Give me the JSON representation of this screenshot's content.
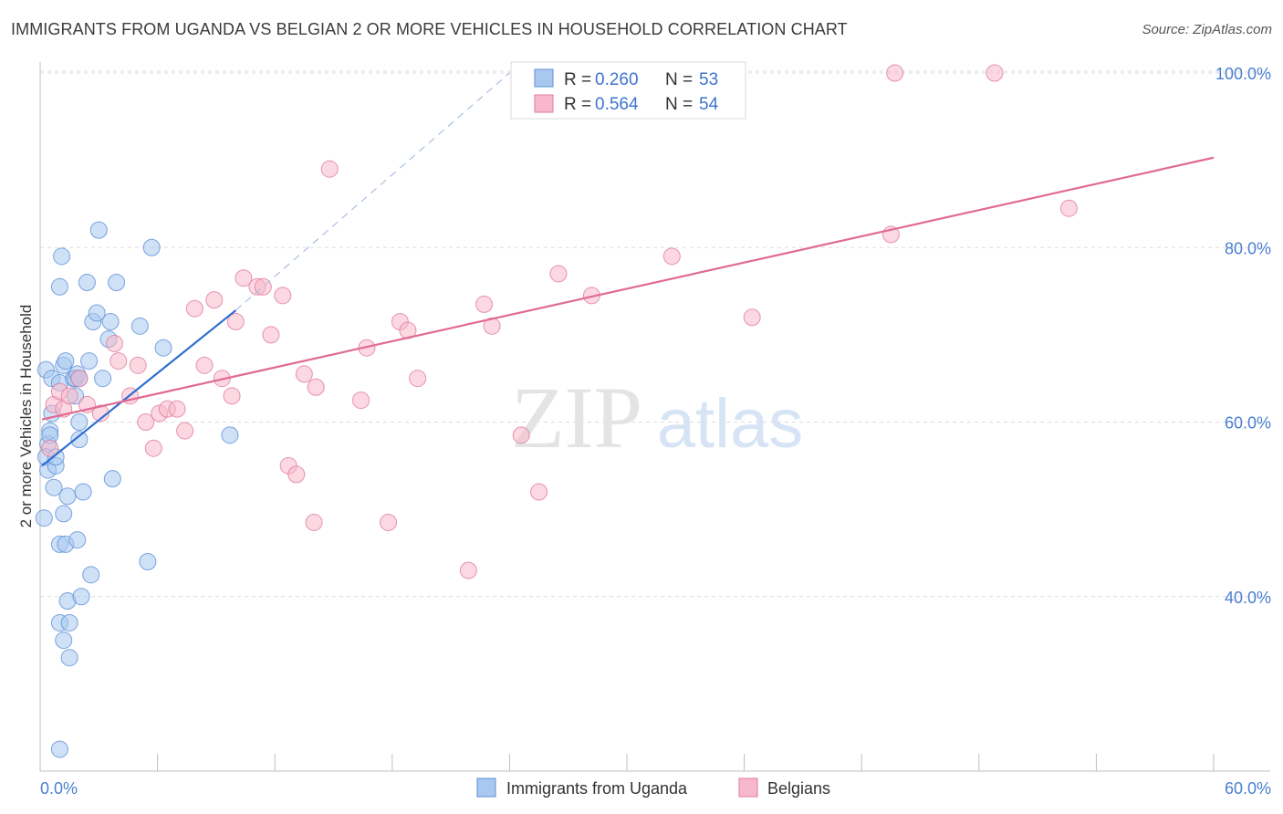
{
  "title": "IMMIGRANTS FROM UGANDA VS BELGIAN 2 OR MORE VEHICLES IN HOUSEHOLD CORRELATION CHART",
  "source": "Source: ZipAtlas.com",
  "watermark": {
    "zip": "ZIP",
    "atlas": "atlas"
  },
  "legend_box": {
    "rows": [
      {
        "r_label": "R =",
        "r_value": "0.260",
        "n_label": "N =",
        "n_value": "53"
      },
      {
        "r_label": "R =",
        "r_value": "0.564",
        "n_label": "N =",
        "n_value": "54"
      }
    ]
  },
  "colors": {
    "uganda_fill": "#a8c8f0",
    "uganda_stroke": "#5b8fd6",
    "uganda_line": "#2e6fcf",
    "belgian_fill": "#f7b8cb",
    "belgian_stroke": "#e07a9c",
    "belgian_line": "#e06b93",
    "tick_label": "#4a7fd0",
    "grid": "#dddddd"
  },
  "chart_data": {
    "type": "scatter",
    "title": "IMMIGRANTS FROM UGANDA VS BELGIAN 2 OR MORE VEHICLES IN HOUSEHOLD CORRELATION CHART",
    "xlabel": "",
    "ylabel": "2 or more Vehicles in Household",
    "xlim": [
      0,
      60
    ],
    "ylim": [
      20,
      100
    ],
    "x_tick_labels": [
      "0.0%",
      "60.0%"
    ],
    "y_ticks": [
      40,
      60,
      80,
      100
    ],
    "y_tick_labels": [
      "40.0%",
      "60.0%",
      "80.0%",
      "100.0%"
    ],
    "grid": true,
    "legend_position": "bottom",
    "series": [
      {
        "name": "Immigrants from Uganda",
        "points": [
          [
            0.3,
            66.0
          ],
          [
            0.4,
            57.5
          ],
          [
            0.3,
            56.0
          ],
          [
            0.5,
            59.0
          ],
          [
            0.6,
            61.0
          ],
          [
            0.5,
            58.5
          ],
          [
            0.4,
            54.5
          ],
          [
            0.2,
            49.0
          ],
          [
            0.8,
            55.0
          ],
          [
            0.7,
            52.5
          ],
          [
            0.8,
            56.0
          ],
          [
            0.6,
            65.0
          ],
          [
            1.0,
            75.5
          ],
          [
            1.1,
            79.0
          ],
          [
            1.2,
            66.5
          ],
          [
            1.3,
            67.0
          ],
          [
            1.0,
            64.5
          ],
          [
            1.2,
            49.5
          ],
          [
            1.4,
            51.5
          ],
          [
            1.0,
            46.0
          ],
          [
            1.3,
            46.0
          ],
          [
            1.4,
            39.5
          ],
          [
            1.0,
            37.0
          ],
          [
            1.2,
            35.0
          ],
          [
            1.5,
            33.0
          ],
          [
            1.5,
            37.0
          ],
          [
            1.7,
            65.0
          ],
          [
            1.8,
            63.0
          ],
          [
            1.8,
            65.0
          ],
          [
            1.9,
            65.5
          ],
          [
            2.0,
            65.0
          ],
          [
            1.9,
            46.5
          ],
          [
            2.2,
            52.0
          ],
          [
            2.1,
            40.0
          ],
          [
            2.0,
            60.0
          ],
          [
            2.0,
            58.0
          ],
          [
            2.4,
            76.0
          ],
          [
            2.5,
            67.0
          ],
          [
            2.6,
            42.5
          ],
          [
            2.7,
            71.5
          ],
          [
            2.9,
            72.5
          ],
          [
            3.0,
            82.0
          ],
          [
            3.2,
            65.0
          ],
          [
            3.5,
            69.5
          ],
          [
            3.6,
            71.5
          ],
          [
            3.7,
            53.5
          ],
          [
            3.9,
            76.0
          ],
          [
            5.1,
            71.0
          ],
          [
            5.5,
            44.0
          ],
          [
            5.7,
            80.0
          ],
          [
            6.3,
            68.5
          ],
          [
            9.7,
            58.5
          ],
          [
            1.0,
            22.5
          ]
        ]
      },
      {
        "name": "Belgians",
        "points": [
          [
            0.5,
            57.0
          ],
          [
            0.7,
            62.0
          ],
          [
            1.0,
            63.5
          ],
          [
            1.2,
            61.5
          ],
          [
            1.5,
            63.0
          ],
          [
            2.0,
            65.0
          ],
          [
            2.4,
            62.0
          ],
          [
            3.1,
            61.0
          ],
          [
            3.8,
            69.0
          ],
          [
            4.0,
            67.0
          ],
          [
            4.6,
            63.0
          ],
          [
            5.0,
            66.5
          ],
          [
            5.4,
            60.0
          ],
          [
            5.8,
            57.0
          ],
          [
            6.1,
            61.0
          ],
          [
            6.5,
            61.5
          ],
          [
            7.0,
            61.5
          ],
          [
            7.4,
            59.0
          ],
          [
            7.9,
            73.0
          ],
          [
            8.4,
            66.5
          ],
          [
            8.9,
            74.0
          ],
          [
            9.3,
            65.0
          ],
          [
            9.8,
            63.0
          ],
          [
            10.0,
            71.5
          ],
          [
            10.4,
            76.5
          ],
          [
            11.1,
            75.5
          ],
          [
            11.4,
            75.5
          ],
          [
            11.8,
            70.0
          ],
          [
            12.4,
            74.5
          ],
          [
            12.7,
            55.0
          ],
          [
            13.1,
            54.0
          ],
          [
            13.5,
            65.5
          ],
          [
            14.1,
            64.0
          ],
          [
            14.0,
            48.5
          ],
          [
            14.8,
            89.0
          ],
          [
            16.4,
            62.5
          ],
          [
            16.7,
            68.5
          ],
          [
            17.8,
            48.5
          ],
          [
            18.4,
            71.5
          ],
          [
            18.8,
            70.5
          ],
          [
            19.3,
            65.0
          ],
          [
            21.9,
            43.0
          ],
          [
            22.7,
            73.5
          ],
          [
            23.1,
            71.0
          ],
          [
            24.6,
            58.5
          ],
          [
            25.5,
            52.0
          ],
          [
            26.5,
            77.0
          ],
          [
            28.2,
            74.5
          ],
          [
            32.3,
            79.0
          ],
          [
            36.4,
            72.0
          ],
          [
            43.5,
            81.5
          ],
          [
            43.7,
            100.0
          ],
          [
            48.8,
            100.0
          ],
          [
            52.6,
            84.5
          ]
        ]
      }
    ],
    "trend_lines": [
      {
        "series": "Immigrants from Uganda",
        "solid": [
          [
            0.1,
            55.0
          ],
          [
            10.0,
            72.8
          ]
        ],
        "dashed": [
          [
            10.0,
            72.8
          ],
          [
            24.0,
            100.0
          ]
        ]
      },
      {
        "series": "Belgians",
        "solid": [
          [
            0.1,
            60.3
          ],
          [
            60.0,
            90.3
          ]
        ]
      }
    ]
  }
}
